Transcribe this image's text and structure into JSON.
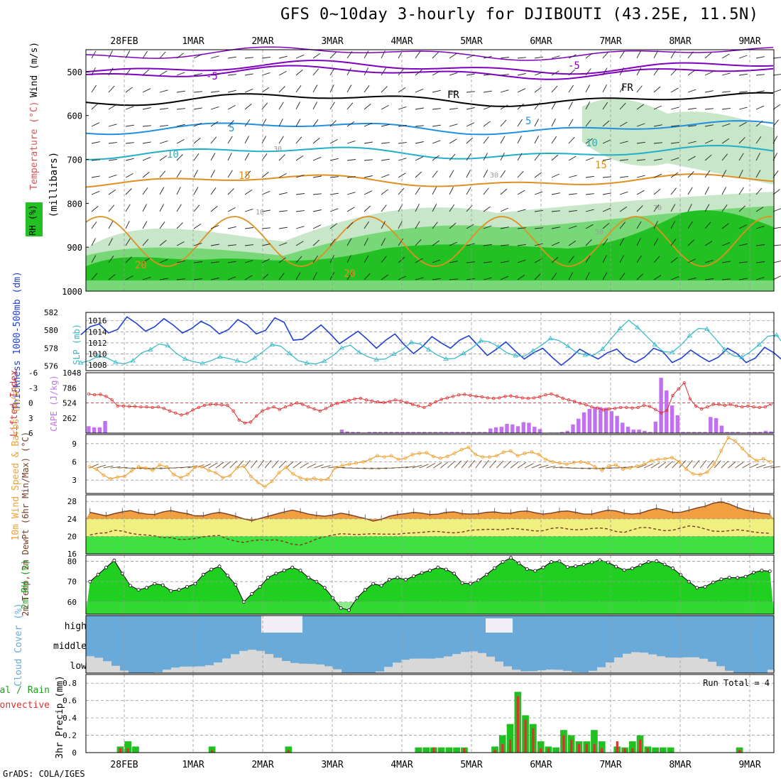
{
  "title": "GFS 0~10day 3-hourly for DJIBOUTI (43.25E, 11.5N)",
  "credit": "GrADS: COLA/IGES",
  "dates": [
    "28FEB",
    "1MAR",
    "2MAR",
    "3MAR",
    "4MAR",
    "5MAR",
    "6MAR",
    "7MAR",
    "8MAR",
    "9MAR"
  ],
  "colors": {
    "rh_dark": "#22c022",
    "rh_mid": "#78d878",
    "rh_light": "#c8e6c8",
    "temp_orange": "#e09020",
    "temp_cyan": "#20b0c8",
    "temp_blue": "#2090e0",
    "temp_purple": "#8000c0",
    "thick": "#2040d0",
    "slp": "#30b8c8",
    "li": "#e03030",
    "cape": "#c070f0",
    "wind": "#f0a030",
    "cloud": "#6aaad8",
    "cloud_low": "#d8d8d8",
    "precip_total": "#20c020",
    "precip_conv": "#e03030"
  },
  "chart_data": [
    {
      "type": "heatmap",
      "panel": "upper-air",
      "ylabel": "(millibars)",
      "legend": [
        "Wind (m/s)",
        "Temperature (°C)",
        "RH (%)"
      ],
      "levels": [
        500,
        600,
        700,
        800,
        900,
        1000
      ],
      "ylim": [
        1000,
        450
      ],
      "contour_labels": [
        "-5",
        "-5",
        "FR",
        "FR",
        "5",
        "5",
        "10",
        "10",
        "15",
        "15",
        "20",
        "20",
        "30",
        "30",
        "10",
        "50",
        "70"
      ]
    },
    {
      "type": "line",
      "panel": "thickness-slp",
      "ylabel_left": "Thickness 1000-500mb (dm)",
      "ylabel_right": "SLP (mb)",
      "left_ticks": [
        576,
        578,
        580,
        582
      ],
      "right_ticks": [
        1008,
        1010,
        1012,
        1014,
        1016
      ],
      "left_range": [
        575.5,
        582
      ],
      "right_range": [
        1007,
        1017.5
      ],
      "series": [
        {
          "name": "Thickness",
          "values": [
            579.5,
            580.4,
            580.7,
            579.7,
            580.1,
            581.5,
            580.8,
            579.9,
            580.4,
            581.3,
            580.6,
            579.7,
            580.2,
            581.0,
            580.5,
            579.6,
            580.1,
            581.2,
            580.6,
            579.6,
            580.0,
            581.4,
            580.9,
            578.9,
            579.0,
            579.8,
            580.6,
            579.6,
            578.5,
            579.2,
            579.9,
            579.0,
            578.0,
            578.9,
            579.6,
            578.4,
            577.4,
            578.2,
            579.3,
            578.6,
            578.0,
            578.9,
            579.4,
            578.3,
            577.2,
            577.9,
            578.7,
            577.7,
            576.8,
            577.5,
            578.0,
            577.0,
            576.1,
            576.9,
            577.9,
            577.3,
            576.8,
            577.5,
            577.9,
            576.9,
            576.4,
            577.0,
            578.0,
            577.6,
            576.4,
            576.9,
            577.8,
            577.1,
            576.5,
            577.0,
            578.0,
            577.4,
            576.4,
            576.9,
            578.1,
            577.5,
            576.6,
            577.0,
            578.4,
            580.0
          ]
        },
        {
          "name": "SLP",
          "values": [
            1008.4,
            1008.8,
            1009.6,
            1009.3,
            1008.5,
            1008.2,
            1008.8,
            1010.2,
            1010.8,
            1011.8,
            1011.5,
            1010.1,
            1009.1,
            1008.6,
            1008.3,
            1008.8,
            1009.5,
            1009.2,
            1008.8,
            1008.4,
            1009.3,
            1010.5,
            1011.7,
            1011.4,
            1010.1,
            1008.8,
            1008.4,
            1008.2,
            1008.7,
            1009.7,
            1011.1,
            1011.6,
            1010.3,
            1009.5,
            1009.0,
            1009.1,
            1010.0,
            1010.8,
            1012.1,
            1011.8,
            1010.8,
            1009.8,
            1009.1,
            1009.2,
            1010.1,
            1011.1,
            1012.4,
            1012.2,
            1011.3,
            1010.2,
            1009.7,
            1009.6,
            1010.6,
            1011.6,
            1012.8,
            1012.4,
            1011.4,
            1010.3,
            1009.8,
            1009.8,
            1010.9,
            1012.8,
            1014.6,
            1016.1,
            1014.8,
            1013.3,
            1011.7,
            1010.4,
            1010.3,
            1011.6,
            1013.3,
            1014.6,
            1014.5,
            1012.7,
            1010.8,
            1009.7,
            1009.4,
            1010.4,
            1011.7,
            1013.2,
            1013.4,
            1011.4,
            1009.8,
            1008.7,
            1008.3
          ]
        }
      ]
    },
    {
      "type": "bar",
      "panel": "li-cape",
      "ylabel_left": "Lifted Index",
      "ylabel_right": "CAPE (J/kg)",
      "left_ticks": [
        -6,
        -3,
        0,
        3,
        6
      ],
      "right_ticks": [
        262,
        524,
        786,
        1048
      ],
      "li_values": [
        -1.8,
        -1.6,
        -1.7,
        -1.3,
        -0.6,
        0.6,
        0.6,
        0.7,
        0.7,
        0.8,
        0.8,
        0.9,
        0.8,
        1.1,
        1.6,
        2.0,
        2.4,
        2.1,
        1.4,
        0.9,
        0.5,
        0.3,
        0.3,
        0.4,
        0.5,
        1.6,
        3.4,
        4.0,
        3.8,
        2.6,
        1.6,
        1.1,
        0.8,
        1.3,
        0.8,
        0.4,
        0.0,
        0.3,
        0.8,
        1.2,
        1.6,
        1.1,
        0.5,
        0.1,
        -0.2,
        -0.5,
        -0.8,
        -0.9,
        -0.6,
        -0.4,
        -0.2,
        -0.1,
        -0.3,
        -0.6,
        -0.4,
        -0.1,
        0.3,
        0.6,
        0.9,
        0.4,
        -0.2,
        -0.7,
        -1.0,
        -1.3,
        -1.6,
        -1.7,
        -1.5,
        -1.3,
        -1.2,
        -1.0,
        -0.9,
        -1.0,
        -1.3,
        -1.4,
        -1.2,
        -1.0,
        -0.9,
        -1.0,
        -1.2,
        -1.6,
        -1.8,
        -1.4,
        -0.9,
        -0.6,
        -0.3,
        0.1,
        0.4,
        0.8,
        1.0,
        1.4,
        1.2,
        1.1,
        0.9,
        0.9,
        1.0,
        0.9,
        0.5,
        0.7,
        1.3,
        2.0,
        1.5,
        -1.5,
        -2.8,
        -4.0,
        -0.8,
        0.6,
        1.2,
        0.8,
        0.3,
        0.3,
        0.5,
        0.3,
        0.6,
        0.8,
        0.6,
        0.8,
        0.9,
        0.8,
        0.2
      ],
      "cape_values": [
        120,
        100,
        100,
        210,
        0,
        0,
        0,
        0,
        0,
        0,
        0,
        0,
        0,
        0,
        0,
        0,
        0,
        0,
        0,
        0,
        0,
        0,
        0,
        0,
        0,
        0,
        0,
        0,
        0,
        0,
        0,
        0,
        0,
        0,
        0,
        0,
        0,
        0,
        0,
        0,
        0,
        0,
        0,
        0,
        0,
        0,
        60,
        30,
        20,
        20,
        10,
        20,
        20,
        20,
        20,
        20,
        20,
        20,
        20,
        20,
        20,
        20,
        20,
        20,
        20,
        20,
        20,
        20,
        20,
        20,
        20,
        20,
        20,
        80,
        100,
        110,
        160,
        150,
        120,
        190,
        180,
        110,
        70,
        0,
        10,
        10,
        20,
        40,
        150,
        250,
        360,
        420,
        450,
        450,
        440,
        380,
        300,
        180,
        110,
        60,
        60,
        40,
        20,
        200,
        960,
        740,
        480,
        310,
        20,
        20,
        20,
        20,
        20,
        280,
        260,
        130,
        20,
        20,
        20,
        10,
        20,
        20,
        20,
        40,
        30
      ]
    },
    {
      "type": "line",
      "panel": "wind10m",
      "ylabel": "10m Wind Speed & Barbs (m/s)",
      "ticks": [
        3,
        6,
        9
      ],
      "ylim": [
        0.8,
        10.5
      ],
      "values": [
        5.2,
        4.8,
        3.8,
        3.2,
        3.5,
        3.6,
        4.5,
        5.2,
        5.0,
        4.6,
        5.5,
        5.2,
        3.9,
        3.4,
        3.9,
        5.1,
        5.2,
        4.6,
        4.2,
        3.4,
        3.7,
        5.0,
        5.3,
        3.6,
        2.6,
        1.9,
        2.8,
        4.2,
        5.1,
        4.0,
        3.4,
        3.1,
        3.3,
        3.0,
        3.2,
        5.0,
        5.4,
        5.6,
        5.8,
        6.0,
        6.4,
        7.0,
        6.8,
        7.0,
        6.4,
        6.6,
        7.2,
        7.4,
        7.5,
        6.9,
        6.6,
        6.9,
        7.4,
        8.0,
        8.4,
        7.2,
        6.8,
        6.8,
        7.0,
        7.6,
        7.8,
        7.0,
        7.4,
        7.6,
        7.2,
        6.4,
        6.0,
        5.8,
        5.6,
        5.9,
        6.0,
        5.8,
        5.2,
        4.6,
        5.3,
        5.5,
        4.8,
        5.0,
        5.3,
        5.6,
        6.2,
        6.4,
        6.5,
        6.7,
        6.0,
        4.8,
        4.0,
        3.9,
        4.3,
        5.6,
        7.8,
        10.0,
        9.4,
        8.2,
        7.0,
        6.2,
        6.5,
        6.0
      ]
    },
    {
      "type": "area",
      "panel": "temp2m",
      "ylabel": "2m Temp, 2m DewPt (6hr Min/Max) (°C)",
      "ticks": [
        16,
        20,
        24,
        28
      ],
      "ylim": [
        16,
        29.5
      ],
      "temp": [
        25.5,
        25.1,
        24.7,
        25.2,
        25.6,
        25.9,
        25.4,
        25.1,
        25.0,
        25.6,
        25.9,
        25.5,
        25.2,
        24.7,
        24.7,
        25.2,
        25.5,
        25.1,
        24.6,
        24.0,
        23.6,
        24.1,
        24.6,
        25.1,
        25.6,
        26.0,
        25.6,
        25.1,
        24.8,
        24.6,
        24.9,
        25.3,
        25.0,
        24.5,
        24.1,
        23.5,
        23.9,
        24.6,
        25.0,
        25.2,
        25.5,
        25.3,
        25.0,
        25.1,
        25.5,
        25.6,
        25.2,
        25.1,
        25.2,
        25.5,
        25.6,
        25.3,
        25.3,
        25.7,
        25.8,
        25.4,
        25.1,
        25.3,
        25.7,
        25.8,
        25.5,
        25.1,
        25.1,
        25.6,
        26.0,
        25.8,
        25.3,
        25.1,
        25.3,
        25.9,
        26.4,
        26.0,
        25.5,
        25.5,
        26.0,
        26.5,
        26.9,
        27.6,
        27.9,
        27.4,
        26.6,
        26.0,
        25.7,
        25.3,
        25.1
      ],
      "dewpt": [
        20.3,
        20.7,
        20.8,
        21.4,
        21.2,
        20.7,
        20.4,
        20.3,
        20.1,
        19.7,
        19.7,
        19.3,
        19.3,
        19.5,
        19.9,
        20.1,
        20.2,
        19.4,
        18.9,
        18.6,
        19.0,
        19.2,
        19.1,
        19.2,
        18.8,
        18.2,
        18.0,
        18.6,
        19.4,
        19.9,
        20.3,
        20.6,
        20.5,
        20.4,
        20.5,
        20.6,
        20.5,
        20.5,
        20.5,
        20.7,
        20.8,
        20.9,
        21.1,
        21.1,
        20.9,
        20.8,
        21.0,
        21.4,
        21.5,
        21.6,
        21.6,
        21.5,
        21.8,
        21.7,
        21.5,
        21.2,
        21.3,
        21.8,
        22.0,
        21.7,
        21.5,
        21.6,
        21.8,
        21.9,
        21.7,
        21.1,
        20.9,
        21.5,
        22.0,
        22.0,
        21.6,
        21.3,
        21.4,
        21.9,
        22.4,
        22.2,
        21.7,
        21.2,
        21.1,
        21.3,
        21.5,
        21.3,
        21.0,
        20.8,
        20.7
      ]
    },
    {
      "type": "area",
      "panel": "rh2m",
      "ylabel": "2m RH (%)",
      "ticks": [
        60,
        70,
        80
      ],
      "ylim": [
        54,
        83
      ],
      "values": [
        70,
        73.5,
        77,
        80.5,
        74,
        68,
        66,
        67,
        69,
        68.3,
        65.5,
        66,
        67.5,
        69,
        73.5,
        76,
        77.5,
        73,
        68.5,
        60,
        64,
        67.5,
        72,
        74,
        75.5,
        77,
        75.5,
        72,
        70,
        67,
        62,
        57,
        56,
        62,
        66,
        69,
        68,
        71,
        72,
        71,
        72.7,
        74.3,
        75.5,
        77,
        76,
        74,
        69.3,
        69,
        70.7,
        73.5,
        76.7,
        79.7,
        81.7,
        79,
        76.2,
        75.3,
        77,
        79.7,
        80,
        77.2,
        77.6,
        78.4,
        79.5,
        80.6,
        79.5,
        77.4,
        75.7,
        76.5,
        78.1,
        79.7,
        80.1,
        78.5,
        76.6,
        73.3,
        70,
        67,
        67.5,
        69.7,
        71.2,
        72,
        71.9,
        72.5,
        74.5,
        75.5,
        75.1
      ]
    },
    {
      "type": "area",
      "panel": "cloud",
      "ylabel": "Cloud Cover (%)",
      "categories": [
        "high",
        "middle",
        "low"
      ]
    },
    {
      "type": "bar",
      "panel": "precip",
      "ylabel": "3hr Precip (mm)",
      "legend": [
        "Total / Rain",
        "Convective"
      ],
      "annotation": "Run Total = 4",
      "ticks": [
        0,
        0.2,
        0.4,
        0.6,
        0.8
      ],
      "ylim": [
        0,
        0.9
      ],
      "bars": [
        [
          4,
          0.07,
          0.05
        ],
        [
          5,
          0.13,
          0.05
        ],
        [
          6,
          0.07,
          0
        ],
        [
          16,
          0.07,
          0.03
        ],
        [
          26,
          0.07,
          0.03
        ],
        [
          43,
          0.06,
          0
        ],
        [
          44,
          0.06,
          0
        ],
        [
          45,
          0.06,
          0.06
        ],
        [
          46,
          0.06,
          0
        ],
        [
          47,
          0.06,
          0
        ],
        [
          48,
          0.06,
          0
        ],
        [
          49,
          0.06,
          0.05
        ],
        [
          53,
          0.07,
          0.03
        ],
        [
          54,
          0.2,
          0.1
        ],
        [
          55,
          0.33,
          0.15
        ],
        [
          56,
          0.7,
          0.65
        ],
        [
          57,
          0.43,
          0.38
        ],
        [
          58,
          0.33,
          0.28
        ],
        [
          59,
          0.13,
          0.05
        ],
        [
          60,
          0.07,
          0.05
        ],
        [
          61,
          0.06,
          0
        ],
        [
          62,
          0.26,
          0.2
        ],
        [
          63,
          0.2,
          0.15
        ],
        [
          64,
          0.13,
          0.1
        ],
        [
          65,
          0.13,
          0.1
        ],
        [
          66,
          0.26,
          0.1
        ],
        [
          67,
          0.13,
          0.05
        ],
        [
          69,
          0.07,
          0.13
        ],
        [
          70,
          0.06,
          0.05
        ],
        [
          71,
          0.13,
          0.05
        ],
        [
          72,
          0.2,
          0.15
        ],
        [
          73,
          0.07,
          0.05
        ],
        [
          74,
          0.06,
          0
        ],
        [
          75,
          0.06,
          0
        ],
        [
          76,
          0.06,
          0
        ],
        [
          85,
          0.06,
          0.03
        ]
      ]
    }
  ]
}
